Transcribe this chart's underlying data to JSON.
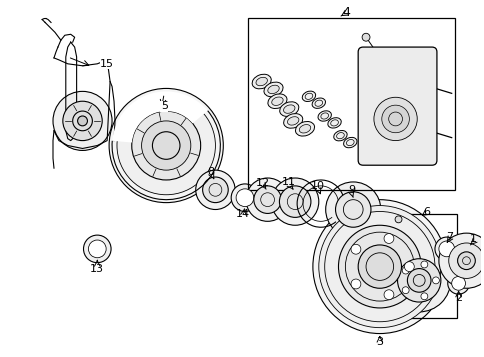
{
  "bg_color": "#ffffff",
  "line_color": "#000000",
  "fig_width": 4.85,
  "fig_height": 3.57,
  "dpi": 100
}
